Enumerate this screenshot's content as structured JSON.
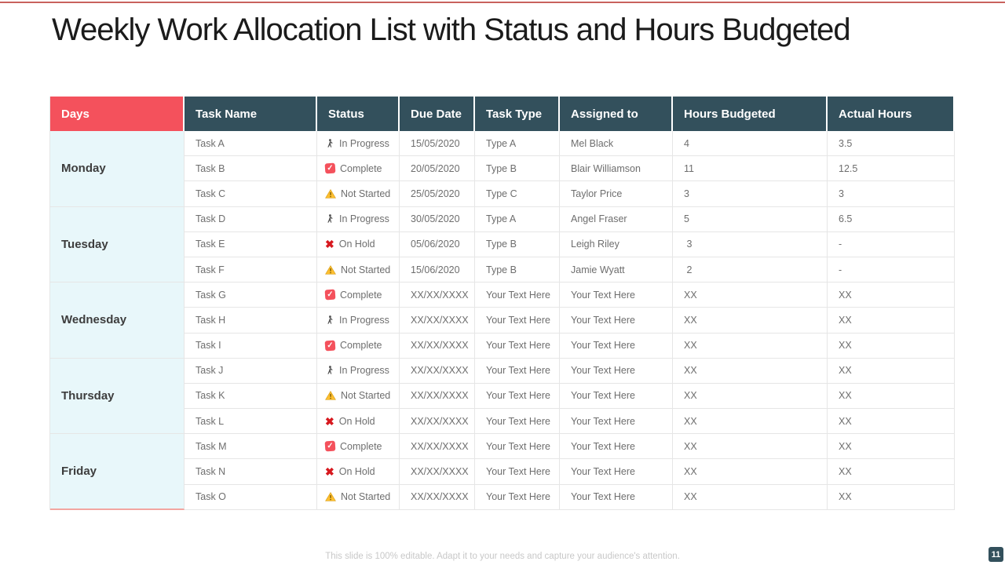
{
  "slide": {
    "title": "Weekly Work Allocation List with Status and Hours Budgeted",
    "footer": "This slide is 100% editable. Adapt it to your needs and capture your audience's attention.",
    "page_number": "11"
  },
  "colors": {
    "accent_red": "#F4515C",
    "header_teal": "#33505C",
    "days_cell_bg": "#E8F7FA",
    "top_line": "#C8625D",
    "on_hold_red": "#D7191F",
    "warning_amber": "#FFBF2F",
    "days_bottom_border": "#F2A6A0"
  },
  "status_icons": {
    "In Progress": "walking-person-icon",
    "Complete": "checked-checkbox-icon",
    "Not Started": "warning-triangle-icon",
    "On Hold": "x-mark-icon"
  },
  "table": {
    "columns": [
      "Days",
      "Task Name",
      "Status",
      "Due Date",
      "Task Type",
      "Assigned to",
      "Hours Budgeted",
      "Actual Hours"
    ],
    "groups": [
      {
        "day": "Monday",
        "rows": [
          {
            "task": "Task A",
            "status": "In Progress",
            "due": "15/05/2020",
            "type": "Type A",
            "assigned": "Mel Black",
            "budgeted": "4",
            "actual": "3.5"
          },
          {
            "task": "Task B",
            "status": "Complete",
            "due": "20/05/2020",
            "type": "Type B",
            "assigned": "Blair Williamson",
            "budgeted": "11",
            "actual": "12.5"
          },
          {
            "task": "Task C",
            "status": "Not Started",
            "due": "25/05/2020",
            "type": "Type C",
            "assigned": "Taylor Price",
            "budgeted": "3",
            "actual": "3"
          }
        ]
      },
      {
        "day": "Tuesday",
        "rows": [
          {
            "task": "Task D",
            "status": "In Progress",
            "due": "30/05/2020",
            "type": "Type A",
            "assigned": "Angel Fraser",
            "budgeted": "5",
            "actual": "6.5"
          },
          {
            "task": "Task E",
            "status": "On Hold",
            "due": "05/06/2020",
            "type": "Type B",
            "assigned": "Leigh Riley",
            "budgeted": " 3",
            "actual": "-"
          },
          {
            "task": "Task F",
            "status": "Not Started",
            "due": "15/06/2020",
            "type": "Type B",
            "assigned": "Jamie Wyatt",
            "budgeted": " 2",
            "actual": "-"
          }
        ]
      },
      {
        "day": "Wednesday",
        "rows": [
          {
            "task": "Task G",
            "status": "Complete",
            "due": "XX/XX/XXXX",
            "type": "Your Text Here",
            "assigned": "Your Text Here",
            "budgeted": "XX",
            "actual": "XX"
          },
          {
            "task": "Task H",
            "status": "In Progress",
            "due": "XX/XX/XXXX",
            "type": "Your Text Here",
            "assigned": "Your Text Here",
            "budgeted": "XX",
            "actual": "XX"
          },
          {
            "task": "Task I",
            "status": "Complete",
            "due": "XX/XX/XXXX",
            "type": "Your Text Here",
            "assigned": "Your Text Here",
            "budgeted": "XX",
            "actual": "XX"
          }
        ]
      },
      {
        "day": "Thursday",
        "rows": [
          {
            "task": "Task J",
            "status": "In Progress",
            "due": "XX/XX/XXXX",
            "type": "Your Text Here",
            "assigned": "Your Text Here",
            "budgeted": "XX",
            "actual": "XX"
          },
          {
            "task": "Task K",
            "status": "Not Started",
            "due": "XX/XX/XXXX",
            "type": "Your Text Here",
            "assigned": "Your Text Here",
            "budgeted": "XX",
            "actual": "XX"
          },
          {
            "task": "Task L",
            "status": "On Hold",
            "due": "XX/XX/XXXX",
            "type": "Your Text Here",
            "assigned": "Your Text Here",
            "budgeted": "XX",
            "actual": "XX"
          }
        ]
      },
      {
        "day": "Friday",
        "rows": [
          {
            "task": "Task M",
            "status": "Complete",
            "due": "XX/XX/XXXX",
            "type": "Your Text Here",
            "assigned": "Your Text Here",
            "budgeted": "XX",
            "actual": "XX"
          },
          {
            "task": "Task N",
            "status": "On Hold",
            "due": "XX/XX/XXXX",
            "type": "Your Text Here",
            "assigned": "Your Text Here",
            "budgeted": "XX",
            "actual": "XX"
          },
          {
            "task": "Task O",
            "status": "Not Started",
            "due": "XX/XX/XXXX",
            "type": "Your Text Here",
            "assigned": "Your Text Here",
            "budgeted": "XX",
            "actual": "XX"
          }
        ]
      }
    ]
  }
}
